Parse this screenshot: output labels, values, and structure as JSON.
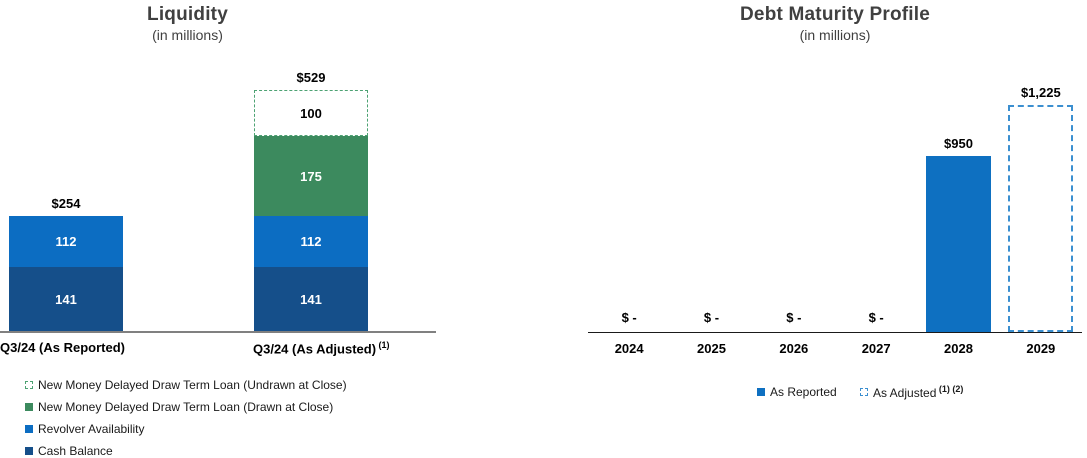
{
  "page": {
    "background": "#ffffff"
  },
  "chart_data": [
    {
      "id": "liquidity",
      "type": "bar",
      "stacked": true,
      "title": "Liquidity",
      "subtitle": "(in millions)",
      "categories": [
        "Q3/24 (As Reported)",
        "Q3/24 (As Adjusted)"
      ],
      "category_superscripts": [
        "",
        "(1)"
      ],
      "series": [
        {
          "key": "cash-balance",
          "name": "Cash Balance",
          "values": [
            141,
            141
          ],
          "color": "#154F8A",
          "style": "solid"
        },
        {
          "key": "revolver-availability",
          "name": "Revolver Availability",
          "values": [
            112,
            112
          ],
          "color": "#0C6DC2",
          "style": "solid"
        },
        {
          "key": "new-money-drawn",
          "name": "New Money Delayed Draw Term Loan (Drawn at Close)",
          "values": [
            0,
            175
          ],
          "color": "#3C8A5E",
          "style": "solid"
        },
        {
          "key": "new-money-undrawn",
          "name": "New Money Delayed Draw Term Loan (Undrawn at Close)",
          "values": [
            0,
            100
          ],
          "color": "#4DA273",
          "style": "dashed"
        }
      ],
      "totals": [
        "$254",
        "$529"
      ],
      "segment_labels": [
        [
          "141",
          "112"
        ],
        [
          "141",
          "112",
          "175",
          "100"
        ]
      ],
      "ylim": [
        0,
        529
      ],
      "grid": false,
      "legend_position": "bottom-left",
      "legend": [
        {
          "label": "New Money Delayed Draw Term Loan (Undrawn at Close)",
          "swatch": "green-dashed-swatch",
          "color": "#4DA273",
          "style": "dashed"
        },
        {
          "label": "New Money Delayed Draw Term Loan (Drawn at Close)",
          "swatch": "green-solid-swatch",
          "color": "#3C8A5E",
          "style": "solid"
        },
        {
          "label": "Revolver Availability",
          "swatch": "blue-solid-swatch",
          "color": "#0C6DC2",
          "style": "solid"
        },
        {
          "label": "Cash Balance",
          "swatch": "dark-blue-solid-swatch",
          "color": "#154F8A",
          "style": "solid"
        }
      ]
    },
    {
      "id": "debt-maturity-profile",
      "type": "bar",
      "title": "Debt Maturity Profile",
      "subtitle": "(in millions)",
      "categories": [
        "2024",
        "2025",
        "2026",
        "2027",
        "2028",
        "2029"
      ],
      "values": [
        0,
        0,
        0,
        0,
        950,
        1225
      ],
      "value_labels": [
        "$ -",
        "$ -",
        "$ -",
        "$ -",
        "$950",
        "$1,225"
      ],
      "bar_styles": [
        "none",
        "none",
        "none",
        "none",
        "solid",
        "dashed"
      ],
      "bar_colors": {
        "solid": "#0E70C1",
        "dashed_border": "#3B8FD0"
      },
      "ylim": [
        0,
        1225
      ],
      "grid": false,
      "legend_position": "bottom-center",
      "legend": [
        {
          "label": "As Reported",
          "superscript": "",
          "color": "#0E70C1",
          "style": "solid"
        },
        {
          "label": "As Adjusted",
          "superscript": "(1) (2)",
          "color": "#3B8FD0",
          "style": "dashed"
        }
      ]
    }
  ],
  "colors": {
    "title_gray": "#404040",
    "axis_left_gray": "#808080",
    "axis_right_black": "#1A1A1A",
    "label_black": "#000000",
    "bar_label_white": "#FFFFFF"
  }
}
